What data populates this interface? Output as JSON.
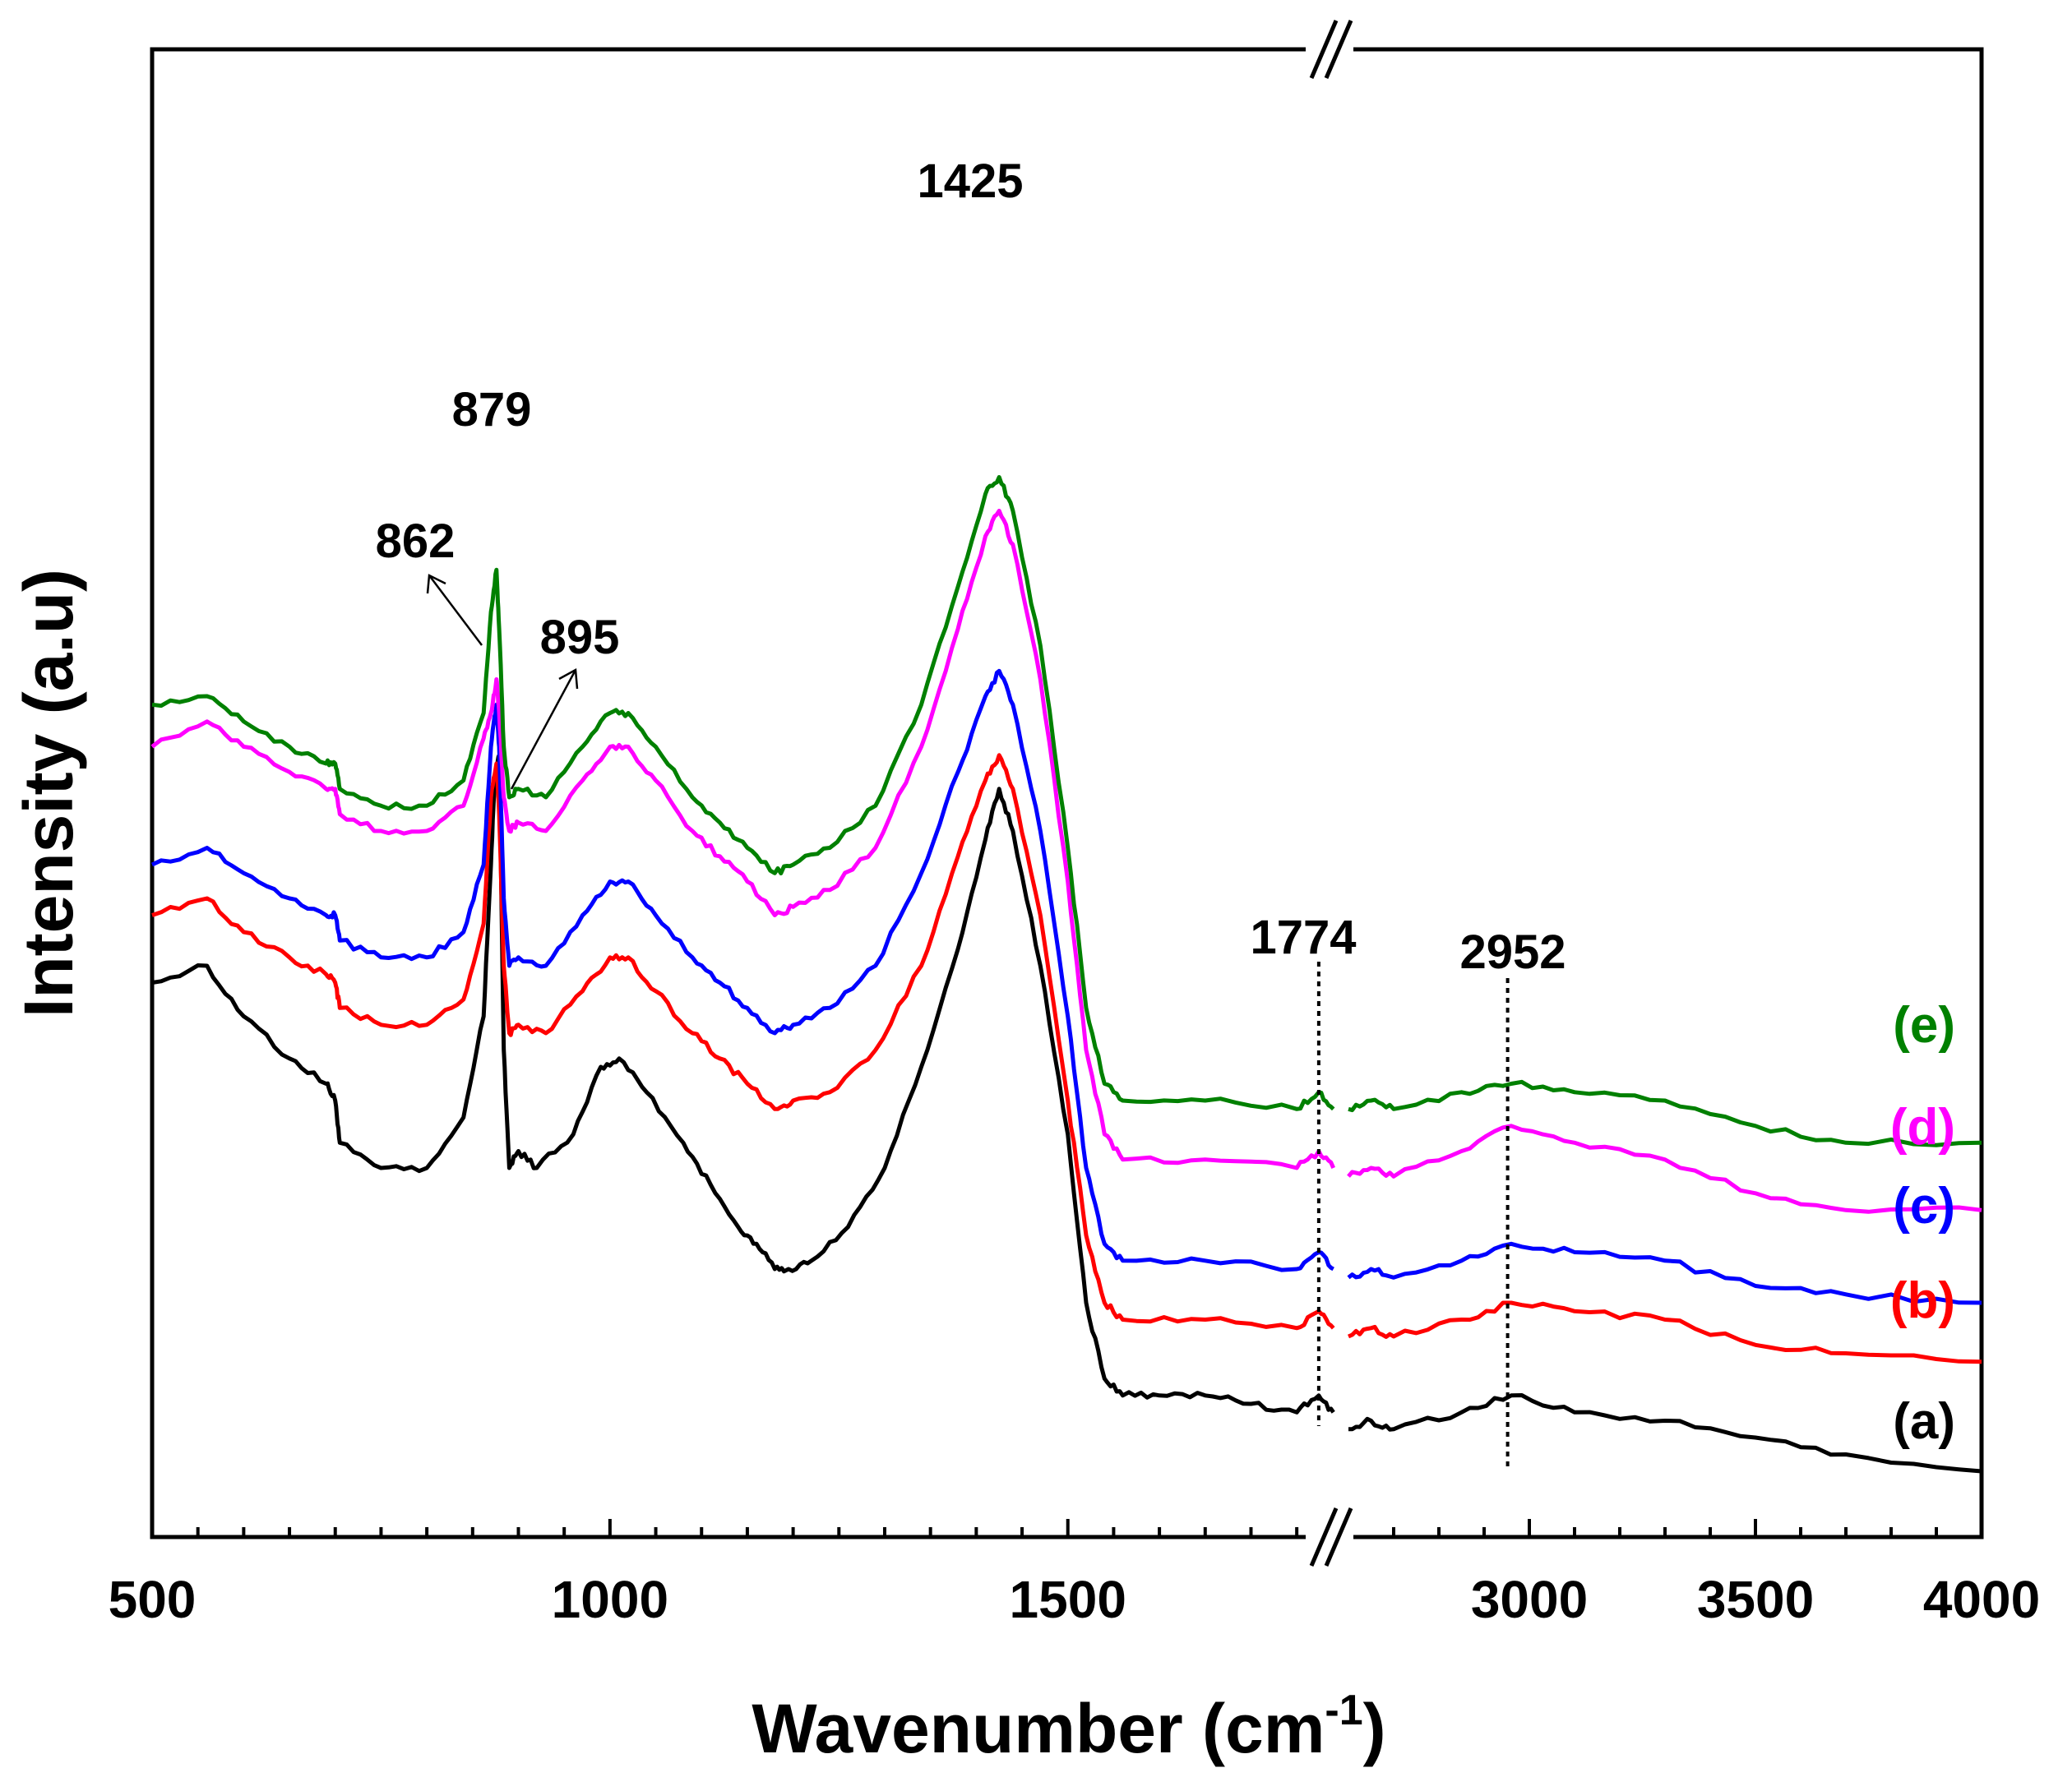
{
  "chart_data": {
    "type": "line",
    "title": "",
    "xlabel": "Wavenumber (cm",
    "xlabel_sup": "-1",
    "xlabel_end": ")",
    "ylabel": "Intensity (a.u)",
    "x_segments": [
      {
        "range": [
          500,
          1775
        ],
        "ticks": [
          "500",
          "1000",
          "1500"
        ],
        "tick_values": [
          500,
          1000,
          1500
        ]
      },
      {
        "range": [
          2600,
          4000
        ],
        "ticks": [
          "3000",
          "3500",
          "4000"
        ],
        "tick_values": [
          3000,
          3500,
          4000
        ]
      }
    ],
    "axis_break": true,
    "y_ticks_shown": false,
    "annotations": [
      {
        "text": "879",
        "x": 879
      },
      {
        "text": "862",
        "x": 862
      },
      {
        "text": "895",
        "x": 895
      },
      {
        "text": "1425",
        "x": 1425
      },
      {
        "text": "1774",
        "x": 1774,
        "dotted_line": true
      },
      {
        "text": "2952",
        "x": 2952,
        "dotted_line": true
      }
    ],
    "series": [
      {
        "name": "(a)",
        "color": "#000000",
        "left": [
          [
            500,
            0.58
          ],
          [
            560,
            0.6
          ],
          [
            600,
            0.54
          ],
          [
            650,
            0.49
          ],
          [
            690,
            0.46
          ],
          [
            700,
            0.44
          ],
          [
            705,
            0.39
          ],
          [
            750,
            0.36
          ],
          [
            800,
            0.36
          ],
          [
            840,
            0.42
          ],
          [
            862,
            0.54
          ],
          [
            870,
            0.72
          ],
          [
            874,
            0.82
          ],
          [
            879,
            0.85
          ],
          [
            884,
            0.5
          ],
          [
            890,
            0.36
          ],
          [
            900,
            0.38
          ],
          [
            920,
            0.36
          ],
          [
            960,
            0.4
          ],
          [
            990,
            0.48
          ],
          [
            1010,
            0.49
          ],
          [
            1040,
            0.45
          ],
          [
            1080,
            0.39
          ],
          [
            1110,
            0.34
          ],
          [
            1140,
            0.29
          ],
          [
            1160,
            0.27
          ],
          [
            1180,
            0.24
          ],
          [
            1195,
            0.24
          ],
          [
            1220,
            0.25
          ],
          [
            1260,
            0.29
          ],
          [
            1300,
            0.36
          ],
          [
            1340,
            0.48
          ],
          [
            1380,
            0.62
          ],
          [
            1410,
            0.75
          ],
          [
            1425,
            0.81
          ],
          [
            1440,
            0.76
          ],
          [
            1470,
            0.6
          ],
          [
            1500,
            0.4
          ],
          [
            1520,
            0.2
          ],
          [
            1540,
            0.11
          ],
          [
            1560,
            0.09
          ],
          [
            1600,
            0.09
          ],
          [
            1650,
            0.09
          ],
          [
            1700,
            0.08
          ],
          [
            1750,
            0.07
          ],
          [
            1774,
            0.09
          ],
          [
            1790,
            0.07
          ]
        ],
        "right": [
          [
            2600,
            0.05
          ],
          [
            2650,
            0.06
          ],
          [
            2700,
            0.05
          ],
          [
            2850,
            0.07
          ],
          [
            2960,
            0.09
          ],
          [
            3100,
            0.07
          ],
          [
            3300,
            0.06
          ],
          [
            3500,
            0.04
          ],
          [
            3700,
            0.02
          ],
          [
            4000,
            0.0
          ]
        ]
      },
      {
        "name": "(b)",
        "color": "#ff0000",
        "left": [
          [
            500,
            0.66
          ],
          [
            560,
            0.68
          ],
          [
            600,
            0.64
          ],
          [
            650,
            0.61
          ],
          [
            690,
            0.59
          ],
          [
            700,
            0.58
          ],
          [
            705,
            0.55
          ],
          [
            750,
            0.53
          ],
          [
            800,
            0.53
          ],
          [
            840,
            0.56
          ],
          [
            862,
            0.65
          ],
          [
            870,
            0.8
          ],
          [
            876,
            0.84
          ],
          [
            879,
            0.78
          ],
          [
            884,
            0.6
          ],
          [
            890,
            0.52
          ],
          [
            900,
            0.53
          ],
          [
            930,
            0.52
          ],
          [
            970,
            0.57
          ],
          [
            1000,
            0.61
          ],
          [
            1020,
            0.61
          ],
          [
            1050,
            0.57
          ],
          [
            1090,
            0.52
          ],
          [
            1120,
            0.49
          ],
          [
            1150,
            0.46
          ],
          [
            1180,
            0.43
          ],
          [
            1200,
            0.44
          ],
          [
            1240,
            0.45
          ],
          [
            1290,
            0.5
          ],
          [
            1340,
            0.6
          ],
          [
            1380,
            0.73
          ],
          [
            1410,
            0.82
          ],
          [
            1425,
            0.85
          ],
          [
            1440,
            0.81
          ],
          [
            1470,
            0.66
          ],
          [
            1500,
            0.44
          ],
          [
            1520,
            0.28
          ],
          [
            1540,
            0.2
          ],
          [
            1560,
            0.18
          ],
          [
            1650,
            0.18
          ],
          [
            1750,
            0.17
          ],
          [
            1774,
            0.19
          ],
          [
            1790,
            0.17
          ]
        ],
        "right": [
          [
            2600,
            0.16
          ],
          [
            2650,
            0.17
          ],
          [
            2700,
            0.16
          ],
          [
            2850,
            0.18
          ],
          [
            2960,
            0.2
          ],
          [
            3100,
            0.19
          ],
          [
            3300,
            0.18
          ],
          [
            3500,
            0.15
          ],
          [
            3700,
            0.14
          ],
          [
            4000,
            0.13
          ]
        ]
      },
      {
        "name": "(c)",
        "color": "#0000ff",
        "left": [
          [
            500,
            0.72
          ],
          [
            560,
            0.74
          ],
          [
            600,
            0.71
          ],
          [
            650,
            0.68
          ],
          [
            690,
            0.66
          ],
          [
            700,
            0.66
          ],
          [
            705,
            0.63
          ],
          [
            750,
            0.61
          ],
          [
            800,
            0.61
          ],
          [
            840,
            0.64
          ],
          [
            862,
            0.72
          ],
          [
            870,
            0.86
          ],
          [
            876,
            0.91
          ],
          [
            879,
            0.86
          ],
          [
            884,
            0.68
          ],
          [
            890,
            0.6
          ],
          [
            900,
            0.61
          ],
          [
            930,
            0.6
          ],
          [
            970,
            0.66
          ],
          [
            1000,
            0.7
          ],
          [
            1020,
            0.7
          ],
          [
            1050,
            0.66
          ],
          [
            1090,
            0.61
          ],
          [
            1120,
            0.58
          ],
          [
            1150,
            0.55
          ],
          [
            1180,
            0.52
          ],
          [
            1200,
            0.53
          ],
          [
            1240,
            0.55
          ],
          [
            1290,
            0.6
          ],
          [
            1340,
            0.71
          ],
          [
            1380,
            0.83
          ],
          [
            1410,
            0.92
          ],
          [
            1425,
            0.95
          ],
          [
            1440,
            0.91
          ],
          [
            1470,
            0.76
          ],
          [
            1500,
            0.54
          ],
          [
            1520,
            0.36
          ],
          [
            1540,
            0.27
          ],
          [
            1560,
            0.25
          ],
          [
            1650,
            0.25
          ],
          [
            1750,
            0.24
          ],
          [
            1774,
            0.26
          ],
          [
            1790,
            0.24
          ]
        ],
        "right": [
          [
            2600,
            0.23
          ],
          [
            2650,
            0.24
          ],
          [
            2700,
            0.23
          ],
          [
            2850,
            0.25
          ],
          [
            2960,
            0.27
          ],
          [
            3100,
            0.26
          ],
          [
            3300,
            0.25
          ],
          [
            3500,
            0.22
          ],
          [
            3700,
            0.21
          ],
          [
            4000,
            0.2
          ]
        ]
      },
      {
        "name": "(d)",
        "color": "#ff00ff",
        "left": [
          [
            500,
            0.86
          ],
          [
            560,
            0.89
          ],
          [
            600,
            0.86
          ],
          [
            650,
            0.83
          ],
          [
            690,
            0.81
          ],
          [
            700,
            0.81
          ],
          [
            705,
            0.78
          ],
          [
            750,
            0.76
          ],
          [
            800,
            0.76
          ],
          [
            840,
            0.79
          ],
          [
            862,
            0.87
          ],
          [
            870,
            0.9
          ],
          [
            876,
            0.94
          ],
          [
            879,
            0.9
          ],
          [
            884,
            0.8
          ],
          [
            890,
            0.76
          ],
          [
            900,
            0.77
          ],
          [
            930,
            0.76
          ],
          [
            970,
            0.82
          ],
          [
            1000,
            0.86
          ],
          [
            1020,
            0.86
          ],
          [
            1050,
            0.82
          ],
          [
            1090,
            0.76
          ],
          [
            1120,
            0.73
          ],
          [
            1150,
            0.7
          ],
          [
            1180,
            0.66
          ],
          [
            1200,
            0.67
          ],
          [
            1240,
            0.69
          ],
          [
            1290,
            0.74
          ],
          [
            1340,
            0.86
          ],
          [
            1380,
            1.0
          ],
          [
            1410,
            1.11
          ],
          [
            1425,
            1.14
          ],
          [
            1440,
            1.1
          ],
          [
            1470,
            0.94
          ],
          [
            1500,
            0.7
          ],
          [
            1520,
            0.5
          ],
          [
            1540,
            0.4
          ],
          [
            1560,
            0.37
          ],
          [
            1650,
            0.37
          ],
          [
            1750,
            0.36
          ],
          [
            1774,
            0.38
          ],
          [
            1790,
            0.36
          ]
        ],
        "right": [
          [
            2600,
            0.35
          ],
          [
            2650,
            0.36
          ],
          [
            2700,
            0.35
          ],
          [
            2850,
            0.38
          ],
          [
            2960,
            0.41
          ],
          [
            3100,
            0.39
          ],
          [
            3300,
            0.37
          ],
          [
            3500,
            0.33
          ],
          [
            3700,
            0.31
          ],
          [
            4000,
            0.31
          ]
        ]
      },
      {
        "name": "(e)",
        "color": "#008000",
        "left": [
          [
            500,
            0.91
          ],
          [
            560,
            0.92
          ],
          [
            600,
            0.89
          ],
          [
            650,
            0.86
          ],
          [
            690,
            0.84
          ],
          [
            700,
            0.84
          ],
          [
            705,
            0.81
          ],
          [
            750,
            0.79
          ],
          [
            800,
            0.79
          ],
          [
            840,
            0.82
          ],
          [
            862,
            0.9
          ],
          [
            870,
            1.02
          ],
          [
            876,
            1.07
          ],
          [
            879,
            1.0
          ],
          [
            884,
            0.86
          ],
          [
            890,
            0.8
          ],
          [
            900,
            0.81
          ],
          [
            930,
            0.8
          ],
          [
            970,
            0.86
          ],
          [
            1000,
            0.9
          ],
          [
            1020,
            0.9
          ],
          [
            1050,
            0.86
          ],
          [
            1090,
            0.8
          ],
          [
            1120,
            0.77
          ],
          [
            1150,
            0.74
          ],
          [
            1180,
            0.71
          ],
          [
            1200,
            0.72
          ],
          [
            1240,
            0.74
          ],
          [
            1290,
            0.79
          ],
          [
            1340,
            0.91
          ],
          [
            1380,
            1.05
          ],
          [
            1410,
            1.16
          ],
          [
            1425,
            1.18
          ],
          [
            1440,
            1.14
          ],
          [
            1470,
            0.98
          ],
          [
            1500,
            0.74
          ],
          [
            1520,
            0.55
          ],
          [
            1540,
            0.46
          ],
          [
            1560,
            0.44
          ],
          [
            1650,
            0.44
          ],
          [
            1750,
            0.43
          ],
          [
            1774,
            0.45
          ],
          [
            1790,
            0.43
          ]
        ],
        "right": [
          [
            2600,
            0.43
          ],
          [
            2650,
            0.44
          ],
          [
            2700,
            0.43
          ],
          [
            2850,
            0.45
          ],
          [
            2960,
            0.46
          ],
          [
            3100,
            0.45
          ],
          [
            3300,
            0.44
          ],
          [
            3500,
            0.41
          ],
          [
            3700,
            0.39
          ],
          [
            4000,
            0.39
          ]
        ]
      }
    ]
  }
}
